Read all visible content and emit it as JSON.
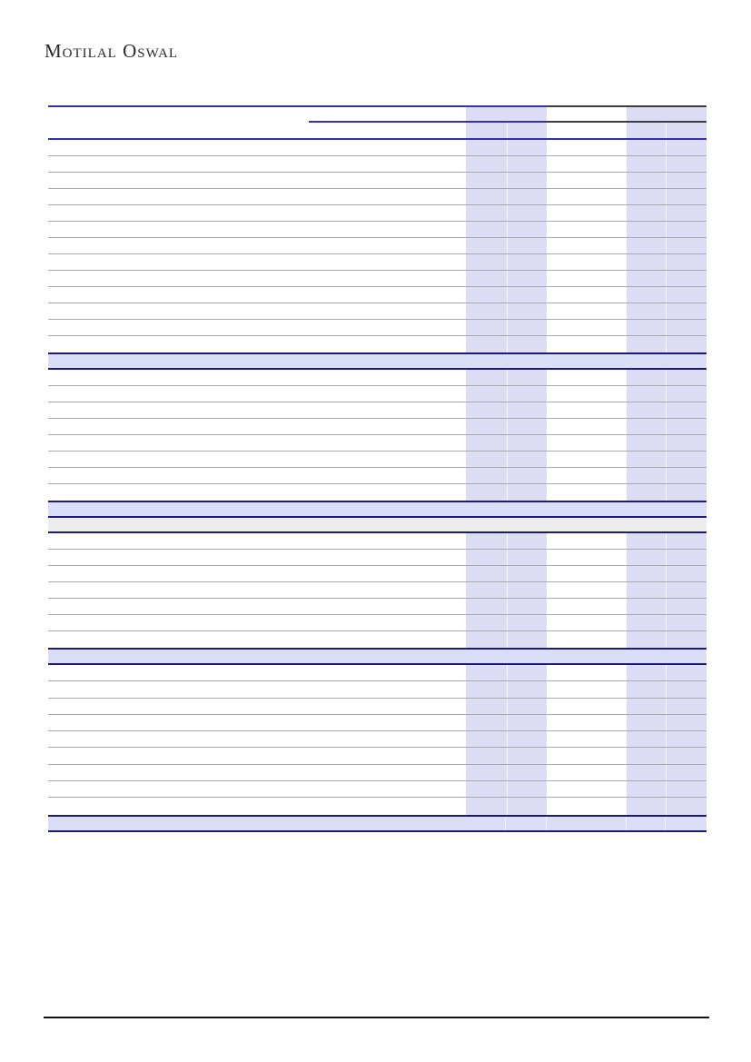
{
  "page": {
    "background": "#ffffff"
  },
  "logo": {
    "text": "Motilal Oswal",
    "color": "#2a2a2e"
  },
  "colors": {
    "page_bg": "#ffffff",
    "band_lavender": "#dcdcf5",
    "section_lavender": "#dcddf6",
    "navy_line": "#3434a0",
    "dark_navy_border": "#1b1b72",
    "dark_header_line": "#3d3d3d",
    "gray_separator": "#aaaaaa",
    "gray_highlight_row": "#ededed",
    "footer_rule": "#141414",
    "logo_color": "#2a2a2e"
  },
  "table": {
    "description": "financials-and-valuations-table-skeleton-no-visible-text",
    "column_bands": [
      {
        "name": "highlight-band-left",
        "sub_columns": 2
      },
      {
        "name": "highlight-band-right",
        "sub_columns": 2
      }
    ],
    "row_groups": [
      {
        "kind": "rule-split"
      },
      {
        "kind": "header-row",
        "height": 15
      },
      {
        "kind": "rule-partial"
      },
      {
        "kind": "header-row",
        "height": 17
      },
      {
        "kind": "rule-full"
      },
      {
        "kind": "data-rows",
        "count": 13,
        "height": 18
      },
      {
        "kind": "section-row"
      },
      {
        "kind": "data-rows",
        "count": 8,
        "height": 18
      },
      {
        "kind": "lavender-row"
      },
      {
        "kind": "gray-row"
      },
      {
        "kind": "data-rows",
        "count": 7,
        "height": 18
      },
      {
        "kind": "section-row"
      },
      {
        "kind": "data-rows",
        "count": 9,
        "height": 18.3
      },
      {
        "kind": "total-row"
      }
    ]
  },
  "footer": {
    "has_rule": true
  }
}
